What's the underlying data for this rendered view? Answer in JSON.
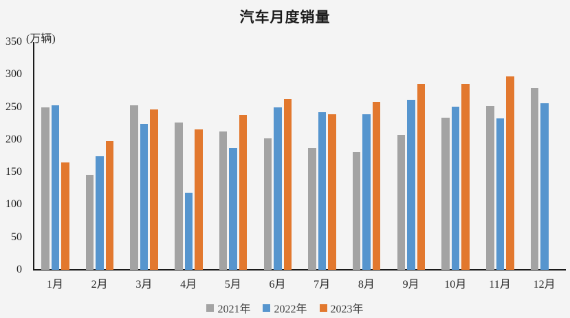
{
  "title": "汽车月度销量",
  "unit_label": "(万辆)",
  "colors": {
    "background": "#f4f4f4",
    "axis": "#1a1a1a",
    "text": "#262626",
    "series_2021": "#a3a3a3",
    "series_2022": "#5695ce",
    "series_2023": "#e2782e"
  },
  "chart_data": {
    "type": "bar",
    "title": "汽车月度销量",
    "unit": "(万辆)",
    "xlabel": "",
    "ylabel": "(万辆)",
    "categories": [
      "1月",
      "2月",
      "3月",
      "4月",
      "5月",
      "6月",
      "7月",
      "8月",
      "9月",
      "10月",
      "11月",
      "12月"
    ],
    "series": [
      {
        "name": "2021年",
        "color": "#a3a3a3",
        "values": [
          250,
          146,
          253,
          226,
          213,
          202,
          187,
          181,
          207,
          234,
          252,
          279
        ]
      },
      {
        "name": "2022年",
        "color": "#5695ce",
        "values": [
          253,
          174,
          224,
          118,
          187,
          250,
          242,
          239,
          261,
          251,
          233,
          256
        ]
      },
      {
        "name": "2023年",
        "color": "#e2782e",
        "values": [
          165,
          198,
          246,
          216,
          238,
          262,
          239,
          258,
          286,
          286,
          297,
          null
        ]
      }
    ],
    "ylim": [
      0,
      350
    ],
    "yticks": [
      0,
      50,
      100,
      150,
      200,
      250,
      300,
      350
    ],
    "grid": false,
    "legend_position": "bottom"
  }
}
